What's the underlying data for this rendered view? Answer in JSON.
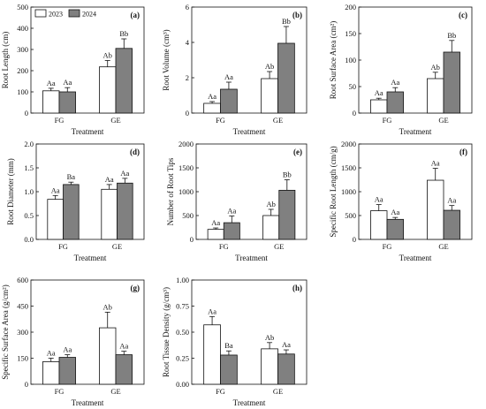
{
  "figure": {
    "legend": [
      {
        "name": "2023",
        "color": "#ffffff"
      },
      {
        "name": "2024",
        "color": "#808080"
      }
    ],
    "colors": {
      "series_2023": "#ffffff",
      "series_2024": "#808080",
      "axis": "#111111",
      "edge": "#111111"
    }
  },
  "chart_data": [
    {
      "id": "a",
      "tag": "(a)",
      "type": "bar",
      "categories": [
        "FG",
        "GE"
      ],
      "xlabel": "Treatment",
      "ylabel": "Root Length (cm)",
      "ylim": [
        0,
        500
      ],
      "yticks": [
        0,
        100,
        200,
        300,
        400,
        500
      ],
      "series": [
        {
          "name": "2023",
          "values": [
            105,
            218
          ],
          "errors": [
            12,
            30
          ],
          "labels": [
            "Aa",
            "Ab"
          ]
        },
        {
          "name": "2024",
          "values": [
            100,
            305
          ],
          "errors": [
            20,
            45
          ],
          "labels": [
            "Aa",
            "Bb"
          ]
        }
      ]
    },
    {
      "id": "b",
      "tag": "(b)",
      "type": "bar",
      "categories": [
        "FG",
        "GE"
      ],
      "xlabel": "Treatment",
      "ylabel": "Root Volume (cm³)",
      "ylim": [
        0,
        6
      ],
      "yticks": [
        0,
        2,
        4,
        6
      ],
      "series": [
        {
          "name": "2023",
          "values": [
            0.55,
            1.95
          ],
          "errors": [
            0.1,
            0.4
          ],
          "labels": [
            "Aa",
            "Ab"
          ]
        },
        {
          "name": "2024",
          "values": [
            1.35,
            3.95
          ],
          "errors": [
            0.4,
            0.95
          ],
          "labels": [
            "Aa",
            "Bb"
          ]
        }
      ]
    },
    {
      "id": "c",
      "tag": "(c)",
      "type": "bar",
      "categories": [
        "FG",
        "GE"
      ],
      "xlabel": "Treatment",
      "ylabel": "Root Surface Area (cm²)",
      "ylim": [
        0,
        200
      ],
      "yticks": [
        0,
        50,
        100,
        150,
        200
      ],
      "series": [
        {
          "name": "2023",
          "values": [
            25,
            65
          ],
          "errors": [
            3,
            12
          ],
          "labels": [
            "Aa",
            "Ab"
          ]
        },
        {
          "name": "2024",
          "values": [
            40,
            115
          ],
          "errors": [
            8,
            22
          ],
          "labels": [
            "Aa",
            "Bb"
          ]
        }
      ]
    },
    {
      "id": "d",
      "tag": "(d)",
      "type": "bar",
      "categories": [
        "FG",
        "GE"
      ],
      "xlabel": "Treatment",
      "ylabel": "Root Diameter (mm)",
      "ylim": [
        0,
        2.0
      ],
      "yticks": [
        0.0,
        0.5,
        1.0,
        1.5,
        2.0
      ],
      "ytick_labels": [
        "0.0",
        "0.5",
        "1.0",
        "1.5",
        "2.0"
      ],
      "series": [
        {
          "name": "2023",
          "values": [
            0.84,
            1.05
          ],
          "errors": [
            0.08,
            0.1
          ],
          "labels": [
            "Aa",
            "Aa"
          ]
        },
        {
          "name": "2024",
          "values": [
            1.15,
            1.18
          ],
          "errors": [
            0.05,
            0.1
          ],
          "labels": [
            "Ba",
            "Aa"
          ]
        }
      ]
    },
    {
      "id": "e",
      "tag": "(e)",
      "type": "bar",
      "categories": [
        "FG",
        "GE"
      ],
      "xlabel": "Treatment",
      "ylabel": "Number of Root Tips",
      "ylim": [
        0,
        2000
      ],
      "yticks": [
        0,
        500,
        1000,
        1500,
        2000
      ],
      "series": [
        {
          "name": "2023",
          "values": [
            210,
            500
          ],
          "errors": [
            30,
            130
          ],
          "labels": [
            "Aa",
            "Ab"
          ]
        },
        {
          "name": "2024",
          "values": [
            350,
            1030
          ],
          "errors": [
            140,
            220
          ],
          "labels": [
            "Aa",
            "Bb"
          ]
        }
      ]
    },
    {
      "id": "f",
      "tag": "(f)",
      "type": "bar",
      "categories": [
        "FG",
        "GE"
      ],
      "xlabel": "Treatment",
      "ylabel": "Specific Root Length (cm/g)",
      "ylim": [
        0,
        2000
      ],
      "yticks": [
        0,
        500,
        1000,
        1500,
        2000
      ],
      "series": [
        {
          "name": "2023",
          "values": [
            600,
            1240
          ],
          "errors": [
            130,
            250
          ],
          "labels": [
            "Aa",
            "Aa"
          ]
        },
        {
          "name": "2024",
          "values": [
            420,
            610
          ],
          "errors": [
            40,
            100
          ],
          "labels": [
            "Aa",
            "Aa"
          ]
        }
      ]
    },
    {
      "id": "g",
      "tag": "(g)",
      "type": "bar",
      "categories": [
        "FG",
        "GE"
      ],
      "xlabel": "Treatment",
      "ylabel": "Specific Surface Area (g/cm²)",
      "ylim": [
        0,
        600
      ],
      "yticks": [
        0,
        150,
        300,
        450,
        600
      ],
      "series": [
        {
          "name": "2023",
          "values": [
            130,
            325
          ],
          "errors": [
            20,
            90
          ],
          "labels": [
            "Aa",
            "Ab"
          ]
        },
        {
          "name": "2024",
          "values": [
            155,
            170
          ],
          "errors": [
            15,
            20
          ],
          "labels": [
            "Aa",
            "Aa"
          ]
        }
      ]
    },
    {
      "id": "h",
      "tag": "(h)",
      "type": "bar",
      "categories": [
        "FG",
        "GE"
      ],
      "xlabel": "Treatment",
      "ylabel": "Root Tissue Density (g/cm³)",
      "ylim": [
        0,
        1.0
      ],
      "yticks": [
        0.0,
        0.25,
        0.5,
        0.75,
        1.0
      ],
      "ytick_labels": [
        "0.00",
        "0.25",
        "0.50",
        "0.75",
        "1.00"
      ],
      "series": [
        {
          "name": "2023",
          "values": [
            0.57,
            0.34
          ],
          "errors": [
            0.08,
            0.06
          ],
          "labels": [
            "Aa",
            "Ab"
          ]
        },
        {
          "name": "2024",
          "values": [
            0.28,
            0.29
          ],
          "errors": [
            0.04,
            0.04
          ],
          "labels": [
            "Ba",
            "Aa"
          ]
        }
      ]
    }
  ]
}
